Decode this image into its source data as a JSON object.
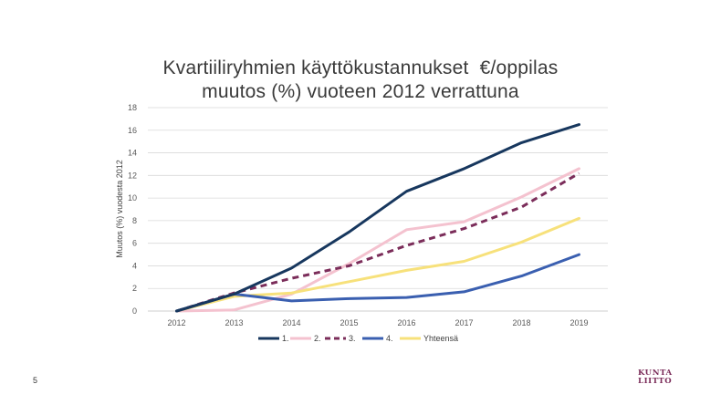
{
  "slide": {
    "title_line1": "Kvartiiliryhmien käyttökustannukset  €/oppilas",
    "title_line2": "muutos (%) vuoteen 2012 verrattuna",
    "slide_number": "5",
    "logo_line1": "KUNTA",
    "logo_line2": "LIITTO"
  },
  "chart_data": {
    "type": "line",
    "title": "Kvartiiliryhmien käyttökustannukset  €/oppilas muutos (%) vuoteen 2012 verrattuna",
    "xlabel": "",
    "ylabel": "Muutos (%) vuodesta 2012",
    "x": [
      "2012",
      "2013",
      "2014",
      "2015",
      "2016",
      "2017",
      "2018",
      "2019"
    ],
    "ylim": [
      0,
      18
    ],
    "yticks": [
      0,
      2,
      4,
      6,
      8,
      10,
      12,
      14,
      16,
      18
    ],
    "grid": true,
    "legend": "bottom",
    "series": [
      {
        "name": "1.",
        "color": "#17375e",
        "dash": "solid",
        "values": [
          0,
          1.5,
          3.8,
          7.0,
          10.6,
          12.6,
          14.9,
          16.5
        ]
      },
      {
        "name": "2.",
        "color": "#f4c2cf",
        "dash": "solid",
        "values": [
          0,
          0.1,
          1.5,
          4.2,
          7.2,
          7.9,
          10.1,
          12.6
        ]
      },
      {
        "name": "3.",
        "color": "#7b2d5a",
        "dash": "dashed",
        "values": [
          0,
          1.6,
          2.9,
          4.0,
          5.8,
          7.3,
          9.2,
          12.2
        ]
      },
      {
        "name": "4.",
        "color": "#3a5fb0",
        "dash": "solid",
        "values": [
          0,
          1.5,
          0.9,
          1.1,
          1.2,
          1.7,
          3.1,
          5.0
        ]
      },
      {
        "name": "Yhteensä",
        "color": "#f7e17b",
        "dash": "solid",
        "values": [
          0,
          1.3,
          1.6,
          2.6,
          3.6,
          4.4,
          6.1,
          8.2
        ]
      }
    ]
  }
}
